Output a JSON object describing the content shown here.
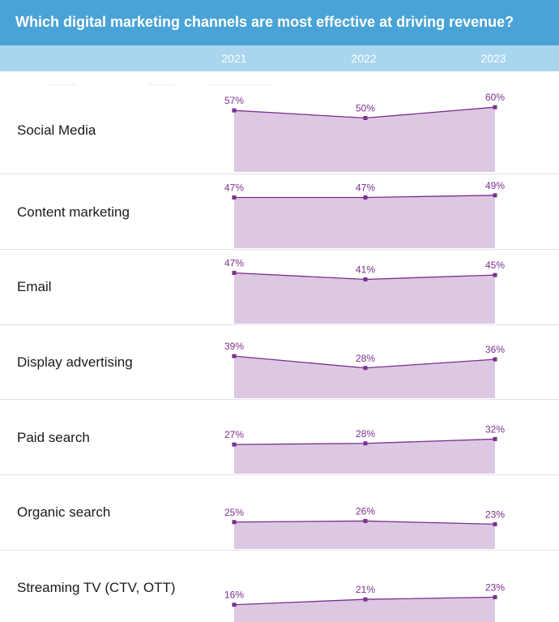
{
  "title": "Which digital marketing channels are most effective at driving revenue?",
  "colors": {
    "title_bg": "#4aa3d6",
    "year_bar_bg": "#a9d5ee",
    "line": "#7b2f8c",
    "area_fill": "#dcc8e3",
    "value_text": "#7b2f8c"
  },
  "chart_data": {
    "type": "area",
    "x": [
      "2021",
      "2022",
      "2023"
    ],
    "ylim": [
      0,
      100
    ],
    "value_format": "percent",
    "series": [
      {
        "name": "Social Media",
        "values": [
          57,
          50,
          60
        ]
      },
      {
        "name": "Content marketing",
        "values": [
          47,
          47,
          49
        ]
      },
      {
        "name": "Email",
        "values": [
          47,
          41,
          45
        ]
      },
      {
        "name": "Display advertising",
        "values": [
          39,
          28,
          36
        ]
      },
      {
        "name": "Paid search",
        "values": [
          27,
          28,
          32
        ]
      },
      {
        "name": "Organic search",
        "values": [
          25,
          26,
          23
        ]
      },
      {
        "name": "Streaming TV (CTV, OTT)",
        "values": [
          16,
          21,
          23
        ]
      }
    ]
  }
}
